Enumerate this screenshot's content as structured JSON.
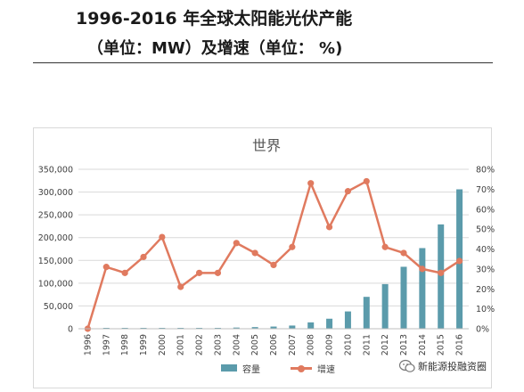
{
  "header": {
    "title": "1996-2016 年全球太阳能光伏产能",
    "subtitle": "（单位：MW）及增速（单位： %)"
  },
  "watermark": {
    "text": "新能源投融资圈",
    "icon": "wechat-icon"
  },
  "colors": {
    "bar": "#5b9bab",
    "line": "#e07a5f",
    "grid": "#d9d9d9",
    "axis_text": "#404040"
  },
  "chart_data": {
    "type": "bar",
    "title": "世界",
    "categories": [
      "1996",
      "1997",
      "1998",
      "1999",
      "2000",
      "2001",
      "2002",
      "2003",
      "2004",
      "2005",
      "2006",
      "2007",
      "2008",
      "2009",
      "2010",
      "2011",
      "2012",
      "2013",
      "2014",
      "2015",
      "2016"
    ],
    "series": [
      {
        "name": "容量",
        "type": "bar",
        "axis": "left",
        "values": [
          300,
          400,
          500,
          600,
          900,
          1100,
          1400,
          1800,
          2600,
          3600,
          4800,
          7000,
          14000,
          22000,
          38000,
          70000,
          98000,
          136000,
          177000,
          229000,
          306000
        ]
      },
      {
        "name": "增速",
        "type": "line",
        "axis": "right",
        "values": [
          0,
          31,
          28,
          36,
          46,
          21,
          28,
          28,
          43,
          38,
          32,
          41,
          73,
          51,
          69,
          74,
          41,
          38,
          30,
          28,
          34
        ]
      }
    ],
    "y_left": {
      "min": 0,
      "max": 350000,
      "ticks": [
        "0",
        "50,000",
        "100,000",
        "150,000",
        "200,000",
        "250,000",
        "300,000",
        "350,000"
      ]
    },
    "y_right": {
      "min": 0,
      "max": 80,
      "ticks": [
        "0%",
        "10%",
        "20%",
        "30%",
        "40%",
        "50%",
        "60%",
        "70%",
        "80%"
      ]
    },
    "grid": true,
    "legend": {
      "position": "bottom",
      "items": [
        "容量",
        "增速"
      ]
    }
  }
}
